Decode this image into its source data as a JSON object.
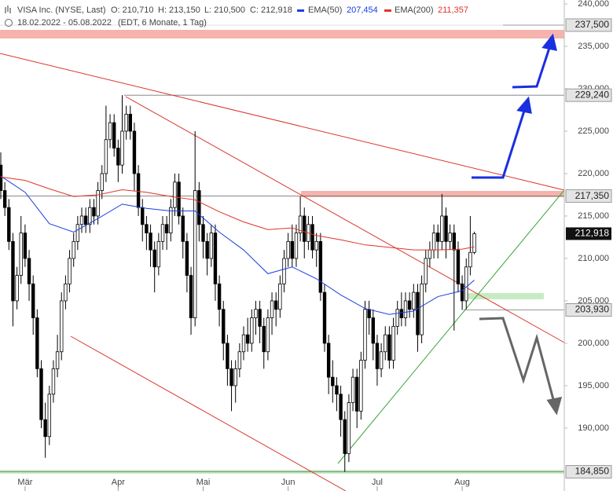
{
  "chart_data": {
    "type": "candlestick",
    "title": "VISA Inc. (NYSE, Last)",
    "ohlc_labels": [
      "O: 210,710",
      "H: 213,150",
      "L: 210,500",
      "C: 212,918"
    ],
    "subtitle": "18.02.2022 - 05.08.2022",
    "note": "(EDT, 6 Monate, 1 Tag)",
    "categories": [
      null,
      null,
      null,
      null,
      null,
      null,
      "Mär",
      null,
      null,
      null,
      null,
      null,
      null,
      null,
      null,
      null,
      null,
      null,
      null,
      null,
      null,
      null,
      null,
      null,
      null,
      null,
      null,
      null,
      null,
      "Apr",
      null,
      null,
      null,
      null,
      null,
      null,
      null,
      null,
      null,
      null,
      null,
      null,
      null,
      null,
      null,
      null,
      null,
      null,
      null,
      null,
      "Mai",
      null,
      null,
      null,
      null,
      null,
      null,
      null,
      null,
      null,
      null,
      null,
      null,
      null,
      null,
      null,
      null,
      null,
      null,
      null,
      null,
      "Jun",
      null,
      null,
      null,
      null,
      null,
      null,
      null,
      null,
      null,
      null,
      null,
      null,
      null,
      null,
      null,
      null,
      null,
      null,
      null,
      null,
      null,
      "Jul",
      null,
      null,
      null,
      null,
      null,
      null,
      null,
      null,
      null,
      null,
      null,
      null,
      null,
      null,
      null,
      null,
      null,
      null,
      null,
      null,
      "Aug",
      null,
      null,
      null
    ],
    "open": [
      221,
      218,
      216,
      212,
      205,
      208,
      213,
      210,
      207,
      203,
      197,
      191,
      189,
      194,
      197,
      199,
      205,
      207,
      210,
      212,
      214,
      215,
      214,
      216,
      215,
      218,
      220,
      224,
      226,
      223,
      221,
      225,
      227,
      225,
      220,
      216,
      214,
      213,
      211,
      209,
      212,
      214,
      213,
      216,
      219,
      215,
      212,
      208,
      203,
      218,
      214,
      212,
      210,
      213,
      207,
      204,
      200,
      197,
      195,
      197,
      199,
      201,
      200,
      203,
      204,
      202,
      199,
      203,
      205,
      204,
      207,
      210,
      212,
      210,
      213,
      215,
      212,
      214,
      211,
      212,
      206,
      200,
      196,
      195,
      194,
      191,
      187,
      193,
      196,
      192,
      198,
      204,
      203,
      200,
      197,
      199,
      201,
      198,
      202,
      204,
      203,
      205,
      204,
      206,
      201,
      207,
      210,
      211,
      213,
      212,
      215,
      212,
      213,
      211,
      207,
      205,
      209,
      210.71
    ],
    "high": [
      222.5,
      219,
      217,
      213,
      209,
      215,
      214,
      211,
      208,
      204,
      198,
      193,
      195,
      198,
      201,
      206,
      208,
      211,
      213,
      215,
      216,
      216,
      217,
      217,
      219,
      221,
      228,
      227,
      227,
      224,
      229.24,
      228,
      228,
      226,
      221,
      217,
      215,
      214,
      212,
      213,
      215,
      215,
      217,
      220,
      220,
      216,
      213,
      209,
      225,
      219,
      215,
      213,
      214,
      214,
      208,
      205,
      201,
      198,
      198,
      200,
      202,
      203,
      204,
      205,
      205,
      203,
      204,
      206,
      206,
      208,
      211,
      213,
      214,
      214,
      217.3,
      216,
      215,
      215,
      213,
      213,
      207,
      201,
      198,
      196,
      195,
      192,
      194,
      197,
      197,
      199,
      205,
      205,
      204,
      201,
      200,
      202,
      202,
      203,
      205,
      206,
      206,
      206,
      207,
      207,
      208,
      211,
      212,
      214,
      214,
      217.6,
      216,
      214,
      214,
      212,
      208,
      210,
      215,
      213.15
    ],
    "low": [
      217,
      215,
      211,
      202,
      204,
      207,
      209,
      205,
      201,
      196,
      190,
      186.5,
      188,
      193,
      196,
      198,
      204,
      206,
      209,
      211,
      213,
      213,
      213,
      214,
      214,
      217,
      219,
      223,
      222,
      219,
      220,
      224,
      224,
      218,
      215,
      212,
      211,
      209,
      206,
      208,
      211,
      211,
      212,
      215,
      214,
      210,
      206,
      201,
      202,
      212,
      210,
      208,
      209,
      205,
      202,
      198,
      195,
      192,
      193,
      196,
      198,
      199,
      199,
      201,
      200,
      197,
      198,
      201,
      202,
      203,
      206,
      209,
      209,
      209,
      212,
      210,
      211,
      210,
      209,
      205,
      199,
      194,
      193,
      192,
      189,
      184.85,
      186,
      192,
      190,
      191,
      197,
      201,
      198,
      195,
      196,
      198,
      197,
      197,
      201,
      202,
      202,
      203,
      203,
      199,
      200,
      206,
      209,
      210,
      210,
      211,
      210,
      211,
      201.5,
      206,
      203.93,
      204,
      208,
      210.5
    ],
    "close": [
      218,
      216,
      212,
      205,
      208,
      213,
      210,
      207,
      203,
      197,
      191,
      189,
      194,
      197,
      199,
      205,
      207,
      210,
      212,
      214,
      215,
      214,
      216,
      215,
      218,
      220,
      224,
      226,
      223,
      221,
      225,
      227,
      225,
      220,
      216,
      214,
      213,
      211,
      209,
      212,
      214,
      213,
      216,
      219,
      215,
      212,
      208,
      203,
      218,
      214,
      212,
      210,
      213,
      207,
      204,
      200,
      197,
      195,
      197,
      199,
      201,
      200,
      203,
      204,
      202,
      199,
      203,
      205,
      204,
      207,
      210,
      212,
      210,
      213,
      215,
      212,
      214,
      211,
      212,
      206,
      200,
      196,
      195,
      194,
      191,
      187,
      193,
      196,
      192,
      198,
      204,
      203,
      200,
      197,
      199,
      201,
      198,
      202,
      204,
      203,
      205,
      204,
      206,
      201,
      207,
      210,
      211,
      213,
      212,
      215,
      212,
      213,
      211,
      207,
      205,
      209,
      210.71,
      212.918
    ],
    "up_color": "#ffffff",
    "down_color": "#000000",
    "candle_stroke": "#000000",
    "series": [
      {
        "name": "EMA(50)",
        "value_label": "207,454",
        "color": "#1a3fe0",
        "x": [
          0,
          6,
          12,
          18,
          24,
          30,
          36,
          42,
          48,
          54,
          60,
          66,
          72,
          78,
          84,
          90,
          96,
          102,
          108,
          114,
          117
        ],
        "values": [
          219.7,
          217.8,
          214.1,
          213.1,
          214.7,
          216.4,
          215.9,
          215.6,
          215.6,
          213.1,
          211,
          208.2,
          209,
          207.6,
          205.7,
          204.1,
          203.4,
          203.8,
          205.5,
          206.2,
          207.454
        ]
      },
      {
        "name": "EMA(200)",
        "value_label": "211,357",
        "color": "#e0342a",
        "x": [
          0,
          6,
          12,
          18,
          24,
          30,
          36,
          42,
          48,
          54,
          60,
          66,
          72,
          78,
          84,
          90,
          96,
          102,
          108,
          114,
          117
        ],
        "values": [
          219.6,
          219.2,
          218.2,
          217.3,
          217.5,
          218.1,
          217.8,
          217.3,
          216.9,
          215.5,
          214.3,
          213.4,
          213.6,
          212.7,
          212.2,
          211.6,
          211.3,
          211,
          211,
          211.1,
          211.357
        ]
      }
    ],
    "levels": [
      {
        "value": 237.5,
        "label": "237,500"
      },
      {
        "value": 229.24,
        "label": "229,240"
      },
      {
        "value": 217.35,
        "label": "217,350"
      },
      {
        "value": 203.93,
        "label": "203,930"
      },
      {
        "value": 184.85,
        "label": "184,850"
      }
    ],
    "last_price": {
      "value": 212.918,
      "label": "212,918"
    },
    "ylim": [
      184.44,
      240.46
    ],
    "yticks": [
      {
        "value": 190,
        "label": "190,000"
      },
      {
        "value": 195,
        "label": "195,000"
      },
      {
        "value": 200,
        "label": "200,000"
      },
      {
        "value": 205,
        "label": "205,000"
      },
      {
        "value": 210,
        "label": "210,000"
      },
      {
        "value": 215,
        "label": "215,000"
      },
      {
        "value": 220,
        "label": "220,000"
      },
      {
        "value": 225,
        "label": "225,000"
      },
      {
        "value": 230,
        "label": "230,000"
      },
      {
        "value": 235,
        "label": "235,000"
      },
      {
        "value": 240,
        "label": "240,000"
      }
    ]
  }
}
